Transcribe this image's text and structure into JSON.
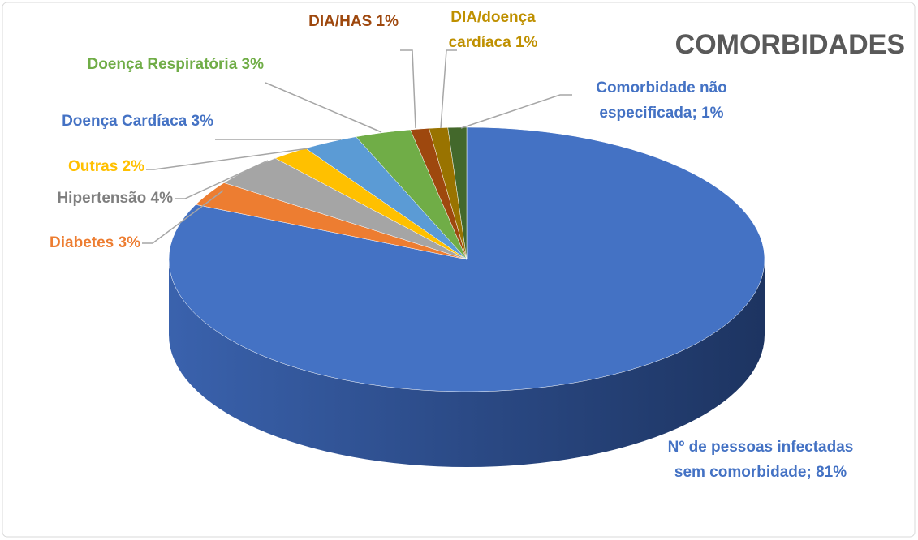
{
  "chart_data": {
    "type": "pie3d",
    "title": "COMORBIDADES",
    "categories": [
      "Nº de pessoas infectadas sem comorbidade",
      "Diabetes",
      "Hipertensão",
      "Outras",
      "Doença Cardíaca",
      "Doença Respiratória",
      "DIA/HAS",
      "DIA/doença cardíaca",
      "Comorbidade não especificada"
    ],
    "values": [
      81,
      3,
      4,
      2,
      3,
      3,
      1,
      1,
      1
    ],
    "value_labels": [
      "Nº de pessoas infectadas sem comorbidade; 81%",
      "Diabetes 3%",
      "Hipertensão 4%",
      "Outras 2%",
      "Doença Cardíaca 3%",
      "Doença Respiratória 3%",
      "DIA/HAS 1%",
      "DIA/doença cardíaca 1%",
      "Comorbidade não especificada; 1%"
    ],
    "colors": [
      "#4472c4",
      "#ed7d31",
      "#a5a5a5",
      "#ffc000",
      "#5b9bd5",
      "#70ad47",
      "#9e480e",
      "#997300",
      "#43682b"
    ],
    "label_colors": [
      "#4472c4",
      "#ed7d31",
      "#7f7f7f",
      "#ffc000",
      "#4472c4",
      "#70ad47",
      "#9e480e",
      "#bf9000",
      "#4472c4"
    ]
  }
}
